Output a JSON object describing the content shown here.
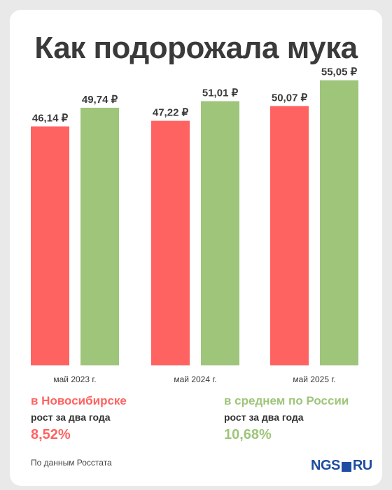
{
  "title": "Как подорожала мука",
  "colors": {
    "novosibirsk": "#ff6361",
    "russia": "#9ec57a",
    "text": "#3a3a3a"
  },
  "chart_data": {
    "type": "bar",
    "title": "Как подорожала мука",
    "categories": [
      "май 2023 г.",
      "май 2024 г.",
      "май 2025 г."
    ],
    "series": [
      {
        "name": "в Новосибирске",
        "values": [
          46.14,
          47.22,
          50.07
        ],
        "labels": [
          "46,14 ₽",
          "47,22 ₽",
          "50,07 ₽"
        ]
      },
      {
        "name": "в среднем по России",
        "values": [
          49.74,
          51.01,
          55.05
        ],
        "labels": [
          "49,74 ₽",
          "51,01 ₽",
          "55,05 ₽"
        ]
      }
    ],
    "ylim": [
      0,
      60
    ],
    "grid": false
  },
  "legend": [
    {
      "name": "в Новосибирске",
      "sub": "рост за два года",
      "value": "8,52%"
    },
    {
      "name": "в среднем по России",
      "sub": "рост за два года",
      "value": "10,68%"
    }
  ],
  "source": "По данным Росстата",
  "logo": {
    "left": "NGS",
    "right": "RU"
  }
}
